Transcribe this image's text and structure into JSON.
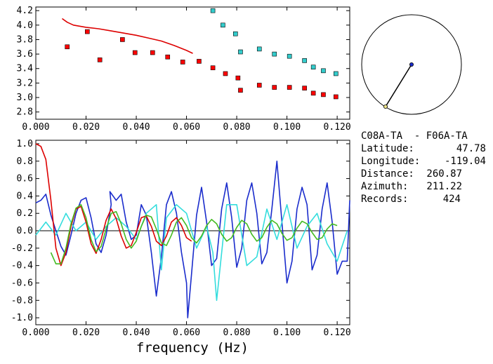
{
  "chart_data": [
    {
      "type": "scatter",
      "xlim": [
        0.0,
        0.125
      ],
      "ylim": [
        2.7,
        4.25
      ],
      "x_ticks": [
        "0.000",
        "0.020",
        "0.040",
        "0.060",
        "0.080",
        "0.100",
        "0.120"
      ],
      "x_tick_values": [
        0.0,
        0.02,
        0.04,
        0.06,
        0.08,
        0.1,
        0.12
      ],
      "y_ticks": [
        "2.8",
        "3.0",
        "3.2",
        "3.4",
        "3.6",
        "3.8",
        "4.0",
        "4.2"
      ],
      "y_tick_values": [
        2.8,
        3.0,
        3.2,
        3.4,
        3.6,
        3.8,
        4.0,
        4.2
      ],
      "series": [
        {
          "color": "#ff0000",
          "marker": "square",
          "x": [
            0.0125,
            0.0205,
            0.0255,
            0.0345,
            0.0395,
            0.0465,
            0.0525,
            0.0585,
            0.065,
            0.0705,
            0.0755,
            0.0805,
            0.0815,
            0.089,
            0.095,
            0.101,
            0.107,
            0.1105,
            0.1145,
            0.1195
          ],
          "y": [
            3.7,
            3.91,
            3.52,
            3.8,
            3.62,
            3.62,
            3.56,
            3.49,
            3.5,
            3.41,
            3.33,
            3.27,
            3.1,
            3.17,
            3.14,
            3.14,
            3.13,
            3.06,
            3.04,
            3.01
          ]
        },
        {
          "color": "#33cccc",
          "marker": "square",
          "x": [
            0.0705,
            0.0745,
            0.0795,
            0.0815,
            0.089,
            0.095,
            0.101,
            0.107,
            0.1105,
            0.1145,
            0.1195
          ],
          "y": [
            4.2,
            4.0,
            3.88,
            3.63,
            3.67,
            3.6,
            3.57,
            3.51,
            3.42,
            3.37,
            3.33
          ]
        },
        {
          "color": "#dd0000",
          "type": "line",
          "x": [
            0.0105,
            0.0125,
            0.015,
            0.02,
            0.025,
            0.03,
            0.035,
            0.04,
            0.045,
            0.05,
            0.055,
            0.06,
            0.0625
          ],
          "y": [
            4.09,
            4.04,
            4.0,
            3.97,
            3.95,
            3.92,
            3.89,
            3.86,
            3.82,
            3.78,
            3.72,
            3.65,
            3.61
          ]
        }
      ]
    },
    {
      "type": "line",
      "xlabel": "frequency (Hz)",
      "xlim": [
        0.0,
        0.125
      ],
      "ylim": [
        -1.08,
        1.04
      ],
      "x_ticks": [
        "0.000",
        "0.020",
        "0.040",
        "0.060",
        "0.080",
        "0.100",
        "0.120"
      ],
      "x_tick_values": [
        0.0,
        0.02,
        0.04,
        0.06,
        0.08,
        0.1,
        0.12
      ],
      "y_ticks": [
        "1.0",
        "0.8",
        "0.6",
        "0.4",
        "0.2",
        "0.0",
        "-0.2",
        "-0.4",
        "-0.6",
        "-0.8",
        "-1.0"
      ],
      "y_tick_values": [
        1.0,
        0.8,
        0.6,
        0.4,
        0.2,
        0.0,
        -0.2,
        -0.4,
        -0.6,
        -0.8,
        -1.0
      ],
      "series": [
        {
          "color": "#1a2ccc",
          "x": [
            0.0,
            0.002,
            0.004,
            0.006,
            0.008,
            0.01,
            0.012,
            0.014,
            0.016,
            0.018,
            0.02,
            0.022,
            0.024,
            0.026,
            0.028,
            0.03,
            0.0295,
            0.032,
            0.034,
            0.036,
            0.038,
            0.04,
            0.042,
            0.044,
            0.046,
            0.048,
            0.05,
            0.052,
            0.054,
            0.056,
            0.058,
            0.06,
            0.0605,
            0.062,
            0.064,
            0.066,
            0.068,
            0.07,
            0.072,
            0.074,
            0.076,
            0.078,
            0.08,
            0.082,
            0.084,
            0.086,
            0.088,
            0.09,
            0.092,
            0.094,
            0.096,
            0.098,
            0.1,
            0.102,
            0.104,
            0.106,
            0.108,
            0.11,
            0.112,
            0.114,
            0.116,
            0.118,
            0.12,
            0.122,
            0.124,
            0.125
          ],
          "y": [
            0.32,
            0.35,
            0.42,
            0.18,
            0.0,
            -0.18,
            -0.28,
            -0.05,
            0.2,
            0.35,
            0.38,
            0.15,
            -0.15,
            -0.25,
            -0.05,
            0.3,
            0.45,
            0.35,
            0.42,
            0.1,
            -0.1,
            -0.05,
            0.3,
            0.18,
            -0.25,
            -0.75,
            -0.3,
            0.3,
            0.45,
            0.2,
            -0.25,
            -0.6,
            -1.0,
            -0.5,
            0.18,
            0.5,
            0.1,
            -0.4,
            -0.32,
            0.25,
            0.55,
            0.15,
            -0.42,
            -0.2,
            0.35,
            0.55,
            0.2,
            -0.38,
            -0.25,
            0.25,
            0.8,
            0.1,
            -0.6,
            -0.35,
            0.25,
            0.5,
            0.3,
            -0.45,
            -0.28,
            0.25,
            0.55,
            0.1,
            -0.5,
            -0.35,
            -0.35,
            0.35
          ]
        },
        {
          "color": "#33dddd",
          "x": [
            0.0,
            0.004,
            0.008,
            0.012,
            0.016,
            0.02,
            0.024,
            0.028,
            0.032,
            0.036,
            0.04,
            0.044,
            0.048,
            0.05,
            0.052,
            0.056,
            0.06,
            0.064,
            0.068,
            0.0705,
            0.072,
            0.076,
            0.08,
            0.084,
            0.088,
            0.092,
            0.096,
            0.1,
            0.104,
            0.108,
            0.112,
            0.116,
            0.12,
            0.124
          ],
          "y": [
            -0.05,
            0.1,
            -0.05,
            0.2,
            0.0,
            0.1,
            -0.1,
            0.05,
            0.15,
            0.05,
            -0.1,
            0.2,
            0.3,
            -0.45,
            0.15,
            0.3,
            0.2,
            -0.2,
            0.05,
            -0.25,
            -0.8,
            0.3,
            0.3,
            -0.4,
            -0.3,
            0.25,
            -0.1,
            0.3,
            -0.2,
            0.05,
            0.2,
            -0.15,
            -0.35,
            0.0
          ]
        },
        {
          "color": "#dd0000",
          "x": [
            0.0,
            0.002,
            0.004,
            0.006,
            0.008,
            0.01,
            0.012,
            0.014,
            0.016,
            0.018,
            0.02,
            0.022,
            0.024,
            0.026,
            0.028,
            0.03,
            0.032,
            0.034,
            0.036,
            0.038,
            0.04,
            0.042,
            0.044,
            0.046,
            0.048,
            0.05,
            0.052,
            0.054,
            0.056,
            0.058,
            0.06,
            0.062
          ],
          "y": [
            1.0,
            0.97,
            0.82,
            0.35,
            -0.2,
            -0.4,
            -0.25,
            0.05,
            0.25,
            0.28,
            0.1,
            -0.15,
            -0.26,
            -0.1,
            0.12,
            0.25,
            0.14,
            -0.06,
            -0.2,
            -0.17,
            -0.02,
            0.15,
            0.17,
            0.05,
            -0.12,
            -0.17,
            -0.06,
            0.1,
            0.15,
            0.06,
            -0.08,
            -0.12
          ]
        },
        {
          "color": "#44bb22",
          "x": [
            0.006,
            0.008,
            0.01,
            0.012,
            0.014,
            0.016,
            0.018,
            0.02,
            0.022,
            0.024,
            0.026,
            0.028,
            0.03,
            0.032,
            0.034,
            0.036,
            0.038,
            0.04,
            0.042,
            0.044,
            0.046,
            0.048,
            0.05,
            0.052,
            0.054,
            0.056,
            0.058,
            0.06,
            0.062,
            0.064,
            0.066,
            0.068,
            0.07,
            0.072,
            0.074,
            0.076,
            0.078,
            0.08,
            0.082,
            0.084,
            0.086,
            0.088,
            0.09,
            0.092,
            0.094,
            0.096,
            0.098,
            0.1,
            0.102,
            0.104,
            0.106,
            0.108,
            0.11,
            0.112,
            0.114,
            0.116,
            0.118,
            0.12
          ],
          "y": [
            -0.25,
            -0.38,
            -0.38,
            -0.2,
            0.08,
            0.26,
            0.3,
            0.15,
            -0.1,
            -0.24,
            -0.18,
            0.02,
            0.2,
            0.22,
            0.08,
            -0.1,
            -0.2,
            -0.12,
            0.05,
            0.18,
            0.16,
            0.02,
            -0.14,
            -0.17,
            -0.05,
            0.1,
            0.15,
            0.06,
            -0.08,
            -0.14,
            -0.06,
            0.06,
            0.13,
            0.08,
            -0.04,
            -0.12,
            -0.08,
            0.04,
            0.12,
            0.08,
            -0.04,
            -0.12,
            -0.08,
            0.04,
            0.12,
            0.08,
            -0.03,
            -0.11,
            -0.08,
            0.03,
            0.11,
            0.08,
            -0.02,
            -0.1,
            -0.08,
            0.02,
            0.08,
            0.06
          ]
        }
      ]
    }
  ],
  "map": {
    "station_a_color": "#f0e68c",
    "station_b_color": "#1a2ccc"
  },
  "info": {
    "stations": "C08A-TA  - F06A-TA",
    "rows": [
      {
        "label": "Latitude:",
        "value": "47.78"
      },
      {
        "label": "Longitude:",
        "value": "-119.04"
      },
      {
        "label": "Distance:",
        "value": "260.87"
      },
      {
        "label": "Azimuth:",
        "value": "211.22"
      },
      {
        "label": "Records:",
        "value": "424"
      }
    ]
  }
}
